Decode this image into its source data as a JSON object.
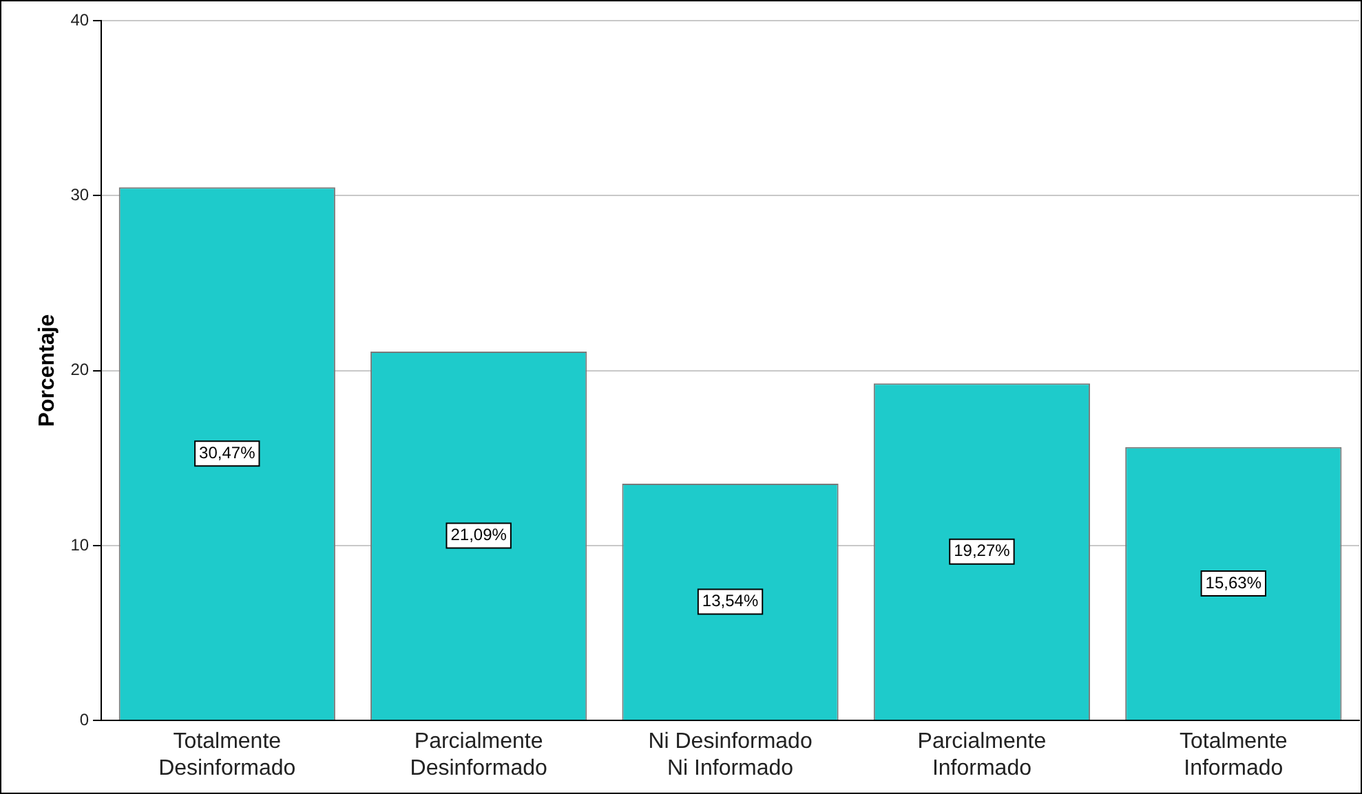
{
  "chart_data": {
    "type": "bar",
    "ylabel": "Porcentaje",
    "categories": [
      "Totalmente\nDesinformado",
      "Parcialmente\nDesinformado",
      "Ni Desinformado\nNi Informado",
      "Parcialmente\nInformado",
      "Totalmente\nInformado"
    ],
    "values": [
      30.47,
      21.09,
      13.54,
      19.27,
      15.63
    ],
    "value_labels": [
      "30,47%",
      "21,09%",
      "13,54%",
      "19,27%",
      "15,63%"
    ],
    "color": "#1ecbcb",
    "ylim": [
      0,
      40
    ],
    "yticks": [
      0,
      10,
      20,
      30,
      40
    ],
    "grid": "y",
    "legend": false
  }
}
